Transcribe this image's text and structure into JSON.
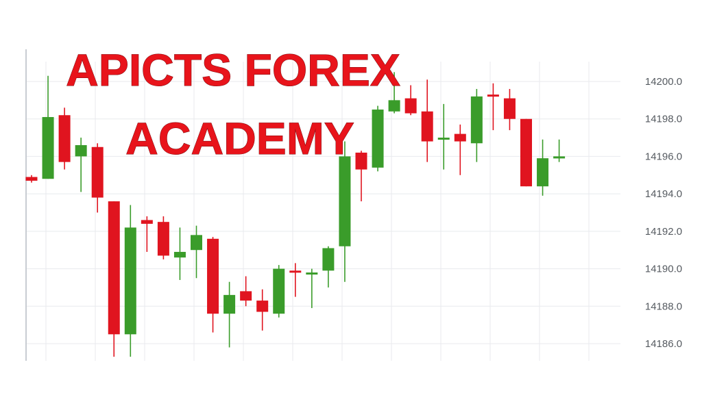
{
  "title": {
    "line1": "APICTS FOREX",
    "line2": "ACADEMY"
  },
  "colors": {
    "up": "#3a9c2a",
    "down": "#e0141f",
    "grid": "#e8eaee",
    "axis": "#c8ccd2",
    "title": "#e8141b"
  },
  "chart_data": {
    "type": "candlestick",
    "grid": true,
    "y_axis_position": "right",
    "ylim": [
      14185.5,
      14201.5
    ],
    "yticks": [
      "14186.0",
      "14188.0",
      "14190.0",
      "14192.0",
      "14194.0",
      "14196.0",
      "14198.0",
      "14200.0"
    ],
    "candles": [
      {
        "open": 14194.9,
        "close": 14194.7,
        "high": 14195.0,
        "low": 14194.6
      },
      {
        "open": 14194.8,
        "close": 14198.1,
        "high": 14200.3,
        "low": 14194.8
      },
      {
        "open": 14198.2,
        "close": 14195.7,
        "high": 14198.6,
        "low": 14195.3
      },
      {
        "open": 14196.0,
        "close": 14196.6,
        "high": 14197.0,
        "low": 14194.1
      },
      {
        "open": 14196.5,
        "close": 14193.8,
        "high": 14196.7,
        "low": 14193.0
      },
      {
        "open": 14193.6,
        "close": 14186.5,
        "high": 14193.6,
        "low": 14185.3
      },
      {
        "open": 14186.5,
        "close": 14192.2,
        "high": 14193.4,
        "low": 14185.3
      },
      {
        "open": 14192.6,
        "close": 14192.4,
        "high": 14192.8,
        "low": 14190.9
      },
      {
        "open": 14192.5,
        "close": 14190.7,
        "high": 14192.8,
        "low": 14190.5
      },
      {
        "open": 14190.6,
        "close": 14190.9,
        "high": 14192.2,
        "low": 14189.4
      },
      {
        "open": 14191.0,
        "close": 14191.8,
        "high": 14192.3,
        "low": 14189.5
      },
      {
        "open": 14191.6,
        "close": 14187.6,
        "high": 14191.7,
        "low": 14186.6
      },
      {
        "open": 14187.6,
        "close": 14188.6,
        "high": 14189.3,
        "low": 14185.8
      },
      {
        "open": 14188.8,
        "close": 14188.3,
        "high": 14189.6,
        "low": 14188.0
      },
      {
        "open": 14188.3,
        "close": 14187.7,
        "high": 14188.9,
        "low": 14186.7
      },
      {
        "open": 14187.6,
        "close": 14190.0,
        "high": 14190.2,
        "low": 14187.4
      },
      {
        "open": 14189.9,
        "close": 14189.8,
        "high": 14190.3,
        "low": 14188.5
      },
      {
        "open": 14189.7,
        "close": 14189.8,
        "high": 14190.0,
        "low": 14187.9
      },
      {
        "open": 14189.9,
        "close": 14191.1,
        "high": 14191.2,
        "low": 14189.0
      },
      {
        "open": 14191.2,
        "close": 14196.0,
        "high": 14196.8,
        "low": 14189.3
      },
      {
        "open": 14196.2,
        "close": 14195.3,
        "high": 14196.3,
        "low": 14193.6
      },
      {
        "open": 14195.4,
        "close": 14198.5,
        "high": 14198.7,
        "low": 14195.2
      },
      {
        "open": 14198.4,
        "close": 14199.0,
        "high": 14200.5,
        "low": 14198.3
      },
      {
        "open": 14199.1,
        "close": 14198.3,
        "high": 14199.8,
        "low": 14198.2
      },
      {
        "open": 14198.4,
        "close": 14196.8,
        "high": 14200.1,
        "low": 14195.7
      },
      {
        "open": 14196.9,
        "close": 14197.0,
        "high": 14198.8,
        "low": 14195.3
      },
      {
        "open": 14197.2,
        "close": 14196.8,
        "high": 14197.7,
        "low": 14195.0
      },
      {
        "open": 14196.7,
        "close": 14199.2,
        "high": 14199.6,
        "low": 14195.7
      },
      {
        "open": 14199.3,
        "close": 14199.2,
        "high": 14199.9,
        "low": 14197.4
      },
      {
        "open": 14199.1,
        "close": 14198.0,
        "high": 14199.6,
        "low": 14197.4
      },
      {
        "open": 14198.0,
        "close": 14194.4,
        "high": 14198.0,
        "low": 14194.4
      },
      {
        "open": 14194.4,
        "close": 14195.9,
        "high": 14196.9,
        "low": 14193.9
      },
      {
        "open": 14195.9,
        "close": 14196.0,
        "high": 14196.9,
        "low": 14195.7
      }
    ]
  }
}
